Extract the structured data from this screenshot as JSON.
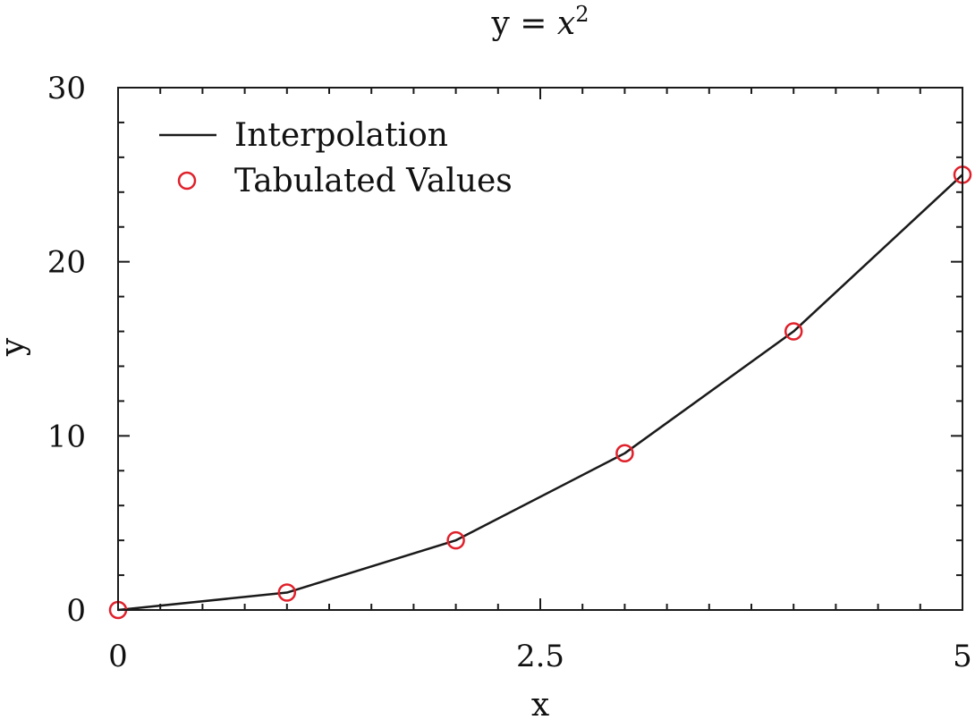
{
  "chart_data": {
    "type": "line",
    "title": "y = x²",
    "title_parts": {
      "lhs": "y = ",
      "var": "x",
      "exp": "2"
    },
    "xlabel": "x",
    "ylabel": "y",
    "xlim": [
      0,
      5
    ],
    "ylim": [
      0,
      30
    ],
    "xticks": [
      {
        "value": 0,
        "label": "0"
      },
      {
        "value": 2.5,
        "label": "2.5"
      },
      {
        "value": 5,
        "label": "5"
      }
    ],
    "yticks": [
      {
        "value": 0,
        "label": "0"
      },
      {
        "value": 10,
        "label": "10"
      },
      {
        "value": 20,
        "label": "20"
      },
      {
        "value": 30,
        "label": "30"
      }
    ],
    "x_minor_step": 0.25,
    "y_minor_step": 2,
    "grid": false,
    "legend_position": "top-left",
    "series": [
      {
        "name": "Interpolation",
        "style": "line",
        "color": "#1a1a1a",
        "x": [
          0,
          1,
          2,
          3,
          4,
          5
        ],
        "y": [
          0,
          1,
          4,
          9,
          16,
          25
        ]
      },
      {
        "name": "Tabulated Values",
        "style": "circle-markers",
        "color": "#e0202a",
        "x": [
          0,
          1,
          2,
          3,
          4,
          5
        ],
        "y": [
          0,
          1,
          4,
          9,
          16,
          25
        ]
      }
    ]
  }
}
